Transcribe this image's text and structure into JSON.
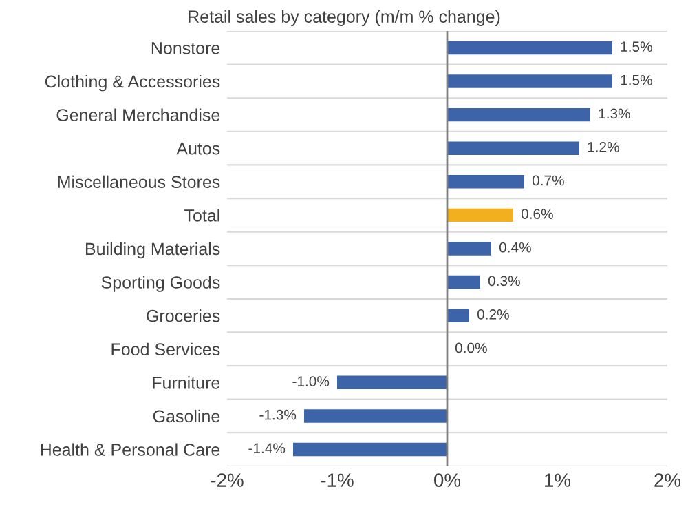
{
  "chart_data": {
    "type": "bar",
    "orientation": "horizontal",
    "title": "Retail sales by category (m/m % change)",
    "categories": [
      "Nonstore",
      "Clothing & Accessories",
      "General Merchandise",
      "Autos",
      "Miscellaneous Stores",
      "Total",
      "Building Materials",
      "Sporting Goods",
      "Groceries",
      "Food Services",
      "Furniture",
      "Gasoline",
      "Health & Personal Care"
    ],
    "values": [
      1.5,
      1.5,
      1.3,
      1.2,
      0.7,
      0.6,
      0.4,
      0.3,
      0.2,
      0.0,
      -1.0,
      -1.3,
      -1.4
    ],
    "colors": [
      "#3d64a8",
      "#3d64a8",
      "#3d64a8",
      "#3d64a8",
      "#3d64a8",
      "#f2b01e",
      "#3d64a8",
      "#3d64a8",
      "#3d64a8",
      "#3d64a8",
      "#3d64a8",
      "#3d64a8",
      "#3d64a8"
    ],
    "value_labels": [
      "1.5%",
      "1.5%",
      "1.3%",
      "1.2%",
      "0.7%",
      "0.6%",
      "0.4%",
      "0.3%",
      "0.2%",
      "0.0%",
      "-1.0%",
      "-1.3%",
      "-1.4%"
    ],
    "xlim": [
      -2,
      2
    ],
    "xticks": [
      {
        "value": -2,
        "label": "-2%"
      },
      {
        "value": -1,
        "label": "-1%"
      },
      {
        "value": 0,
        "label": "0%"
      },
      {
        "value": 1,
        "label": "1%"
      },
      {
        "value": 2,
        "label": "2%"
      }
    ],
    "grid": "y",
    "legend": false
  }
}
